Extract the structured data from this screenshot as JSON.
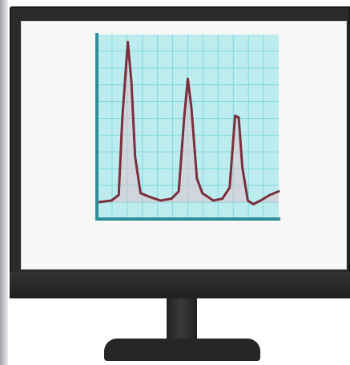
{
  "colors": {
    "monitor_frame": "#2b2b2b",
    "screen": "#f7f7f6",
    "grid_background": "#bdecef",
    "grid_lines": "#7fd8df",
    "axis": "#2e8f98",
    "trace": "#7a2f3b",
    "peak_fill": "#e6bcc6"
  },
  "chart_data": {
    "type": "line",
    "title": "",
    "xlabel": "",
    "ylabel": "",
    "grid": true,
    "xlim": [
      0,
      100
    ],
    "ylim": [
      0,
      100
    ],
    "series": [
      {
        "values": [
          {
            "x": 0,
            "y": 9
          },
          {
            "x": 8,
            "y": 10
          },
          {
            "x": 12,
            "y": 13
          },
          {
            "x": 14,
            "y": 55
          },
          {
            "x": 17,
            "y": 96
          },
          {
            "x": 19,
            "y": 74
          },
          {
            "x": 21,
            "y": 34
          },
          {
            "x": 24,
            "y": 14
          },
          {
            "x": 29,
            "y": 12
          },
          {
            "x": 35,
            "y": 10
          },
          {
            "x": 41,
            "y": 11
          },
          {
            "x": 45,
            "y": 15
          },
          {
            "x": 48,
            "y": 55
          },
          {
            "x": 50,
            "y": 76
          },
          {
            "x": 52,
            "y": 60
          },
          {
            "x": 55,
            "y": 22
          },
          {
            "x": 58,
            "y": 14
          },
          {
            "x": 64,
            "y": 10
          },
          {
            "x": 69,
            "y": 11
          },
          {
            "x": 73,
            "y": 17
          },
          {
            "x": 76,
            "y": 56
          },
          {
            "x": 78,
            "y": 55
          },
          {
            "x": 80,
            "y": 28
          },
          {
            "x": 83,
            "y": 10
          },
          {
            "x": 86,
            "y": 8
          },
          {
            "x": 90,
            "y": 10
          },
          {
            "x": 95,
            "y": 13
          },
          {
            "x": 100,
            "y": 15
          }
        ]
      }
    ]
  }
}
